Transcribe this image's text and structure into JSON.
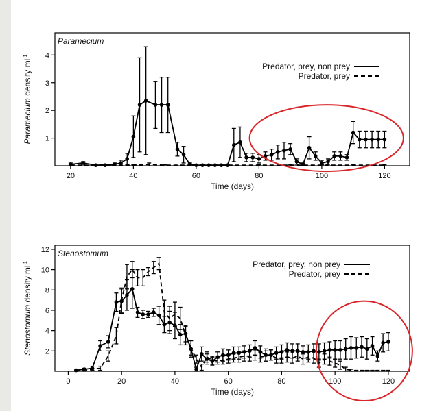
{
  "chart_data": [
    {
      "type": "line",
      "title": "Paramecium",
      "xlabel": "Time (days)",
      "ylabel_italic": "Paramecium",
      "ylabel_rest": " density ml",
      "ylabel_sup": "-1",
      "xlim": [
        15,
        128
      ],
      "ylim": [
        0,
        4.8
      ],
      "xticks": [
        20,
        40,
        60,
        80,
        100,
        120
      ],
      "yticks": [
        1,
        2,
        3,
        4
      ],
      "legend_position": "top-right",
      "highlight": {
        "x_center": 101.5,
        "y_center": 1.0,
        "x_radius": 24.5,
        "y_radius": 1.2,
        "color": "#d9262b"
      },
      "series": [
        {
          "name": "Predator, prey, non prey",
          "style": "solid",
          "x": [
            20,
            24,
            28,
            31,
            34,
            36,
            38,
            40,
            42,
            44,
            47,
            49,
            51,
            54,
            56,
            58,
            60,
            62,
            64,
            66,
            68,
            70,
            72,
            74,
            76,
            78,
            80,
            82,
            84,
            86,
            88,
            90,
            92,
            94,
            96,
            98,
            100,
            102,
            104,
            106,
            108,
            110,
            112,
            114,
            116,
            118,
            120
          ],
          "y": [
            0.05,
            0.1,
            0.02,
            0.02,
            0.05,
            0.1,
            0.25,
            1.05,
            2.2,
            2.35,
            2.2,
            2.2,
            2.2,
            0.6,
            0.4,
            0.05,
            0.02,
            0.02,
            0.02,
            0.02,
            0.02,
            0.02,
            0.75,
            0.85,
            0.3,
            0.3,
            0.25,
            0.35,
            0.4,
            0.5,
            0.55,
            0.6,
            0.15,
            0.05,
            0.65,
            0.35,
            0.1,
            0.15,
            0.35,
            0.35,
            0.3,
            1.2,
            0.95,
            0.95,
            0.95,
            0.95,
            0.95
          ],
          "err": [
            0.05,
            0.05,
            0.03,
            0.03,
            0.05,
            0.1,
            0.2,
            0.75,
            1.7,
            1.95,
            0.85,
            1.0,
            1.0,
            0.25,
            0.3,
            0.05,
            0.03,
            0.03,
            0.03,
            0.03,
            0.03,
            0.03,
            0.6,
            0.55,
            0.15,
            0.15,
            0.15,
            0.15,
            0.2,
            0.25,
            0.3,
            0.2,
            0.1,
            0.05,
            0.4,
            0.15,
            0.1,
            0.1,
            0.15,
            0.15,
            0.1,
            0.4,
            0.3,
            0.3,
            0.3,
            0.3,
            0.3
          ]
        },
        {
          "name": "Predator, prey",
          "style": "dashed",
          "x": [
            20,
            30,
            40,
            45,
            50,
            60,
            70,
            80,
            90,
            100,
            110,
            120
          ],
          "y": [
            0.02,
            0.02,
            0.02,
            0.05,
            0.02,
            0.02,
            0.02,
            0.02,
            0.02,
            0.02,
            0.02,
            0.02
          ],
          "err": [
            0.02,
            0.02,
            0.02,
            0.05,
            0.02,
            0.02,
            0.02,
            0.02,
            0.02,
            0.02,
            0.02,
            0.02
          ]
        }
      ]
    },
    {
      "type": "line",
      "title": "Stenostomum",
      "xlabel": "Time (days)",
      "ylabel_italic": "Stenostomum",
      "ylabel_rest": " density ml",
      "ylabel_sup": "-1",
      "xlim": [
        -5,
        128
      ],
      "ylim": [
        0,
        12.4
      ],
      "xticks": [
        0,
        20,
        40,
        60,
        80,
        100,
        120
      ],
      "yticks": [
        2,
        4,
        6,
        8,
        10,
        12
      ],
      "legend_position": "top-right",
      "highlight": {
        "x_center": 111,
        "y_center": 2.0,
        "x_radius": 18,
        "y_radius": 4.9,
        "color": "#d9262b"
      },
      "series": [
        {
          "name": "Predator, prey, non prey",
          "style": "solid",
          "x": [
            3,
            6,
            9,
            12,
            15,
            18,
            20,
            22,
            24,
            26,
            28,
            30,
            32,
            34,
            36,
            38,
            40,
            42,
            44,
            46,
            48,
            50,
            52,
            54,
            56,
            58,
            60,
            62,
            64,
            66,
            68,
            70,
            72,
            74,
            76,
            78,
            80,
            82,
            84,
            86,
            88,
            90,
            92,
            94,
            96,
            98,
            100,
            102,
            104,
            106,
            108,
            110,
            112,
            114,
            116,
            118,
            120
          ],
          "y": [
            0.1,
            0.2,
            0.3,
            2.5,
            2.9,
            6.8,
            6.9,
            7.5,
            8.1,
            5.8,
            5.6,
            5.6,
            5.8,
            5.5,
            4.6,
            4.8,
            4.5,
            3.6,
            3.7,
            2.2,
            0.2,
            1.7,
            1.2,
            1.0,
            1.4,
            1.6,
            1.6,
            1.8,
            1.8,
            1.9,
            2.0,
            2.3,
            1.9,
            1.6,
            1.6,
            1.8,
            1.9,
            2.1,
            2.0,
            2.0,
            1.9,
            1.9,
            2.0,
            1.9,
            2.0,
            2.1,
            2.1,
            2.1,
            2.2,
            2.3,
            2.3,
            2.4,
            2.2,
            2.5,
            1.5,
            2.8,
            2.9
          ],
          "err": [
            0.1,
            0.1,
            0.2,
            0.5,
            0.6,
            0.9,
            1.2,
            1.5,
            1.9,
            0.5,
            0.4,
            0.3,
            0.4,
            0.9,
            0.8,
            1.1,
            1.3,
            1.0,
            0.8,
            0.8,
            0.2,
            0.7,
            0.5,
            0.4,
            0.5,
            0.6,
            0.5,
            0.6,
            0.6,
            0.6,
            0.6,
            0.7,
            0.6,
            0.6,
            0.5,
            0.6,
            0.7,
            0.7,
            0.7,
            0.7,
            0.6,
            0.7,
            0.7,
            0.8,
            0.8,
            0.8,
            0.9,
            0.9,
            1.0,
            1.1,
            1.0,
            1.0,
            1.0,
            0.9,
            0.5,
            0.9,
            0.9
          ]
        },
        {
          "name": "Predator, prey",
          "style": "dashed",
          "x": [
            3,
            6,
            9,
            12,
            15,
            18,
            20,
            22,
            24,
            26,
            28,
            30,
            32,
            34,
            36,
            38,
            40,
            42,
            44,
            46,
            48,
            50,
            52,
            54,
            56,
            58,
            60,
            62,
            64,
            66,
            68,
            70,
            72,
            74,
            76,
            78,
            80,
            82,
            84,
            86,
            88,
            90,
            92,
            94,
            96,
            98,
            100,
            102,
            104,
            106,
            108,
            110,
            112,
            114,
            116,
            118,
            120
          ],
          "y": [
            0.05,
            0.1,
            0.2,
            0.3,
            1.5,
            3.5,
            7.0,
            9.3,
            10.0,
            9.2,
            9.2,
            9.8,
            10.2,
            10.6,
            5.8,
            5.2,
            5.6,
            5.2,
            3.5,
            2.3,
            1.2,
            0.4,
            1.4,
            1.1,
            1.0,
            1.1,
            1.2,
            1.3,
            1.4,
            1.5,
            1.5,
            1.6,
            1.4,
            1.5,
            1.6,
            1.3,
            1.3,
            1.4,
            1.3,
            1.5,
            1.2,
            1.4,
            1.3,
            0.8,
            1.2,
            1.0,
            0.8,
            0.6,
            0.2,
            0.1,
            0.05,
            0.05,
            0.05,
            0.05,
            0.05,
            0.05,
            0.05
          ],
          "err": [
            0.05,
            0.1,
            0.1,
            0.2,
            0.5,
            0.8,
            1.2,
            1.2,
            0.8,
            0.8,
            0.8,
            0.4,
            0.6,
            0.6,
            1.2,
            1.2,
            1.2,
            1.1,
            0.9,
            0.7,
            0.4,
            0.3,
            0.5,
            0.4,
            0.3,
            0.4,
            0.4,
            0.4,
            0.5,
            0.5,
            0.5,
            0.5,
            0.5,
            0.5,
            0.5,
            0.5,
            0.5,
            0.5,
            0.5,
            0.5,
            0.5,
            0.5,
            0.5,
            0.4,
            0.5,
            0.4,
            0.4,
            0.4,
            0.2,
            0.1,
            0.05,
            0.05,
            0.05,
            0.05,
            0.05,
            0.05,
            0.05
          ]
        }
      ]
    }
  ]
}
